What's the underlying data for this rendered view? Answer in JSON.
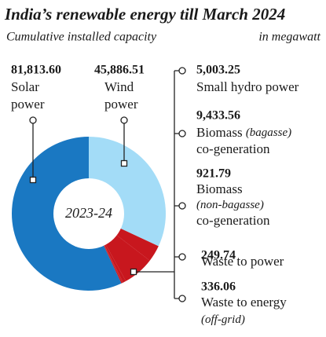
{
  "chart_data": {
    "type": "donut",
    "title": "India’s renewable energy till March 2024",
    "subtitle": "Cumulative installed capacity",
    "unit_note": "in megawatt",
    "center_label": "2023-24",
    "categories": [
      "Solar\npower",
      "Wind\npower",
      "Small hydro power",
      "Biomass (bagasse)\nco-generation",
      "Biomass\n(non-bagasse)\nco-generation",
      "Waste to power",
      "Waste to energy\n(off-grid)"
    ],
    "values": [
      81813.6,
      45886.51,
      5003.25,
      9433.56,
      921.79,
      249.74,
      336.06
    ],
    "value_labels": [
      "81,813.60",
      "45,886.51",
      "5,003.25",
      "9,433.56",
      "921.79",
      "249.74",
      "336.06"
    ],
    "colors": [
      "#1a78c2",
      "#a3dcf7",
      "#c8171e",
      "#c8171e",
      "#c8171e",
      "#c8171e",
      "#c8171e"
    ]
  }
}
